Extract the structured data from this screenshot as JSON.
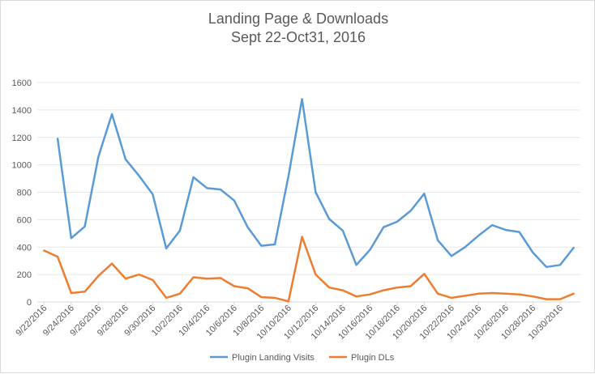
{
  "chart_data": {
    "type": "line",
    "title": [
      "Landing Page & Downloads",
      "Sept 22-Oct31, 2016"
    ],
    "xlabel": "",
    "ylabel": "",
    "ylim": [
      0,
      1600
    ],
    "yticks": [
      0,
      200,
      400,
      600,
      800,
      1000,
      1200,
      1400,
      1600
    ],
    "x": [
      "9/22/2016",
      "9/23/2016",
      "9/24/2016",
      "9/25/2016",
      "9/26/2016",
      "9/27/2016",
      "9/28/2016",
      "9/29/2016",
      "9/30/2016",
      "10/1/2016",
      "10/2/2016",
      "10/3/2016",
      "10/4/2016",
      "10/5/2016",
      "10/6/2016",
      "10/7/2016",
      "10/8/2016",
      "10/9/2016",
      "10/10/2016",
      "10/11/2016",
      "10/12/2016",
      "10/13/2016",
      "10/14/2016",
      "10/15/2016",
      "10/16/2016",
      "10/17/2016",
      "10/18/2016",
      "10/19/2016",
      "10/20/2016",
      "10/21/2016",
      "10/22/2016",
      "10/23/2016",
      "10/24/2016",
      "10/25/2016",
      "10/26/2016",
      "10/27/2016",
      "10/28/2016",
      "10/29/2016",
      "10/30/2016",
      "10/31/2016"
    ],
    "xtick_labels": [
      "9/22/2016",
      "9/24/2016",
      "9/26/2016",
      "9/28/2016",
      "9/30/2016",
      "10/2/2016",
      "10/4/2016",
      "10/6/2016",
      "10/8/2016",
      "10/10/2016",
      "10/12/2016",
      "10/14/2016",
      "10/16/2016",
      "10/18/2016",
      "10/20/2016",
      "10/22/2016",
      "10/24/2016",
      "10/26/2016",
      "10/28/2016",
      "10/30/2016"
    ],
    "grid": true,
    "legend_position": "bottom",
    "series": [
      {
        "name": "Plugin Landing Visits",
        "color": "#5b9bd5",
        "values": [
          null,
          1190,
          465,
          550,
          1060,
          1370,
          1040,
          920,
          785,
          390,
          520,
          910,
          830,
          820,
          740,
          545,
          410,
          420,
          920,
          1480,
          800,
          605,
          520,
          270,
          380,
          545,
          585,
          665,
          790,
          450,
          335,
          400,
          485,
          560,
          525,
          510,
          360,
          255,
          270,
          395
        ]
      },
      {
        "name": "Plugin DLs",
        "color": "#ed7d31",
        "values": [
          375,
          330,
          65,
          75,
          190,
          280,
          170,
          200,
          160,
          30,
          60,
          180,
          170,
          175,
          115,
          100,
          35,
          30,
          5,
          475,
          200,
          105,
          85,
          40,
          55,
          85,
          105,
          115,
          205,
          60,
          30,
          45,
          60,
          65,
          60,
          55,
          40,
          20,
          20,
          60
        ]
      }
    ]
  }
}
